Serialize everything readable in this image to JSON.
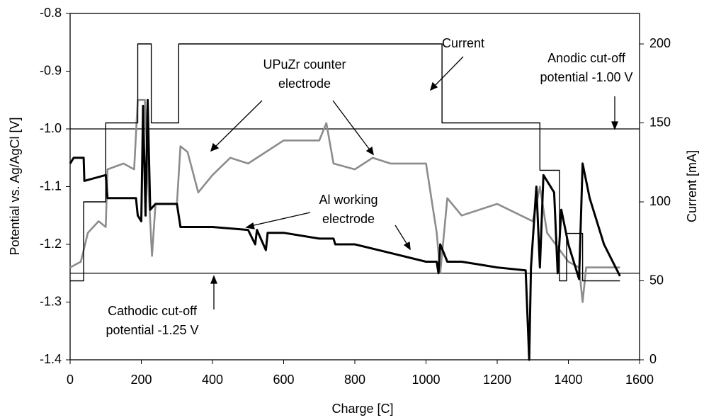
{
  "chart_data": {
    "type": "line",
    "x_label": "Charge [C]",
    "y_label": "Potential vs. Ag/AgCl [V]",
    "y2_label": "Current [mA]",
    "xlim": [
      0,
      1600
    ],
    "xticks": [
      0,
      200,
      400,
      600,
      800,
      1000,
      1200,
      1400,
      1600
    ],
    "ylim": [
      -1.4,
      -0.8
    ],
    "yticks": [
      -1.4,
      -1.3,
      -1.2,
      -1.1,
      {
        "value": -1,
        "label": "-1.0"
      },
      -0.9,
      -0.8
    ],
    "y2lim": [
      0,
      219.3
    ],
    "y2ticks": [
      0,
      50,
      100,
      150,
      200
    ],
    "hlines": [
      -1,
      -1.25
    ],
    "series": [
      {
        "color": "#000000",
        "axis": "y2",
        "x": [
          0,
          38,
          38,
          100,
          100,
          190,
          190,
          228,
          228,
          305,
          305,
          1045,
          1045,
          1320,
          1320,
          1375,
          1375,
          1395,
          1395,
          1440,
          1440,
          1545
        ],
        "values": [
          50,
          50,
          100,
          100,
          150,
          150,
          200,
          200,
          150,
          150,
          200,
          200,
          150,
          150,
          120,
          120,
          50,
          50,
          80,
          80,
          50,
          50
        ]
      },
      {
        "color": "#000000",
        "x": [
          0,
          10,
          38,
          40,
          100,
          105,
          185,
          190,
          200,
          205,
          212,
          218,
          225,
          240,
          300,
          310,
          400,
          500,
          520,
          525,
          550,
          555,
          600,
          700,
          740,
          745,
          800,
          900,
          1000,
          1030,
          1035,
          1040,
          1060,
          1100,
          1150,
          1200,
          1280,
          1290,
          1295,
          1310,
          1320,
          1330,
          1360,
          1370,
          1380,
          1400,
          1430,
          1440,
          1460,
          1500,
          1545
        ],
        "values": [
          -1.06,
          -1.05,
          -1.05,
          -1.09,
          -1.08,
          -1.12,
          -1.12,
          -1.15,
          -1.16,
          -0.96,
          -1.15,
          -0.95,
          -1.14,
          -1.13,
          -1.13,
          -1.17,
          -1.17,
          -1.175,
          -1.2,
          -1.175,
          -1.21,
          -1.18,
          -1.18,
          -1.19,
          -1.19,
          -1.2,
          -1.2,
          -1.215,
          -1.23,
          -1.23,
          -1.25,
          -1.2,
          -1.23,
          -1.23,
          -1.235,
          -1.24,
          -1.245,
          -1.4,
          -1.24,
          -1.1,
          -1.24,
          -1.08,
          -1.11,
          -1.25,
          -1.14,
          -1.2,
          -1.26,
          -1.06,
          -1.12,
          -1.2,
          -1.255
        ]
      },
      {
        "color": "#8c8c8c",
        "x": [
          0,
          30,
          50,
          80,
          100,
          105,
          150,
          180,
          190,
          210,
          220,
          230,
          240,
          300,
          310,
          330,
          360,
          400,
          450,
          500,
          600,
          700,
          720,
          740,
          800,
          850,
          900,
          1000,
          1030,
          1040,
          1060,
          1100,
          1200,
          1300,
          1320,
          1340,
          1400,
          1430,
          1440,
          1450,
          1545
        ],
        "values": [
          -1.24,
          -1.23,
          -1.18,
          -1.16,
          -1.17,
          -1.07,
          -1.06,
          -1.07,
          -0.95,
          -0.95,
          -1.1,
          -1.22,
          -1.13,
          -1.13,
          -1.03,
          -1.04,
          -1.11,
          -1.08,
          -1.05,
          -1.06,
          -1.02,
          -1.02,
          -0.99,
          -1.06,
          -1.07,
          -1.05,
          -1.06,
          -1.06,
          -1.18,
          -1.25,
          -1.12,
          -1.15,
          -1.13,
          -1.16,
          -1.1,
          -1.18,
          -1.23,
          -1.24,
          -1.3,
          -1.24,
          -1.24
        ]
      }
    ],
    "annotations": [
      {
        "lines": [
          "Current"
        ]
      },
      {
        "lines": [
          "UPuZr counter",
          "electrode"
        ]
      },
      {
        "lines": [
          "Anodic cut-off",
          "potential -1.00 V"
        ]
      },
      {
        "lines": [
          "Al working",
          "electrode"
        ]
      },
      {
        "lines": [
          "Cathodic cut-off",
          "potential -1.25 V"
        ]
      }
    ]
  }
}
